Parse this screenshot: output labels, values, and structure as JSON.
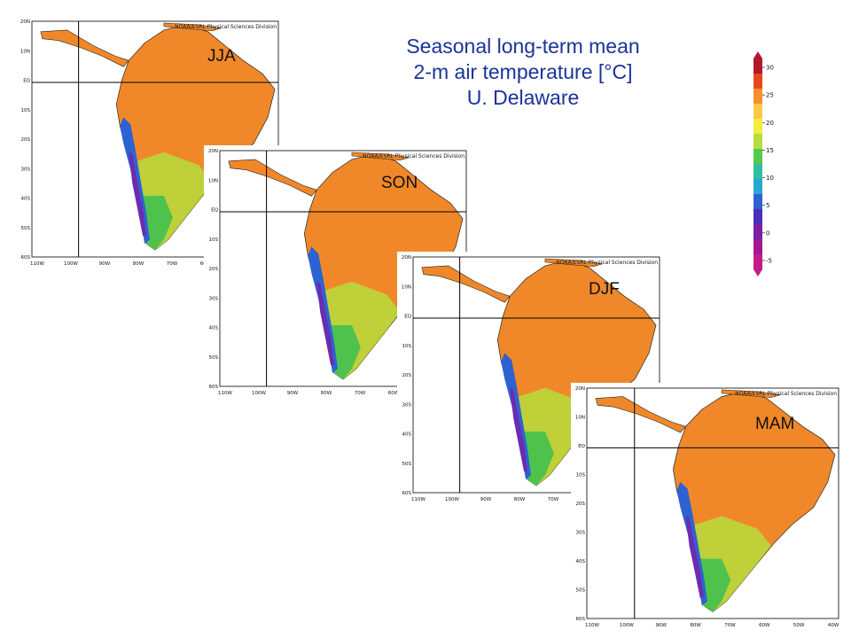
{
  "title": {
    "line1": "Seasonal long-term mean",
    "line2": "2-m air temperature [°C]",
    "line3": "U. Delaware"
  },
  "source_label": "NOAA/ESRL Physical Sciences Division",
  "lat_ticks": [
    "20N",
    "10N",
    "EQ",
    "10S",
    "20S",
    "30S",
    "40S",
    "50S",
    "60S"
  ],
  "lon_ticks": [
    "110W",
    "100W",
    "90W",
    "80W",
    "70W",
    "60W",
    "50W",
    "40W"
  ],
  "panels": [
    {
      "season": "JJA"
    },
    {
      "season": "SON"
    },
    {
      "season": "DJF"
    },
    {
      "season": "MAM"
    }
  ],
  "colorbar": {
    "ticks": [
      "30",
      "25",
      "20",
      "15",
      "10",
      "5",
      "0",
      "-5"
    ],
    "colors": [
      "#b2182b",
      "#e8471e",
      "#f58f2a",
      "#fdc843",
      "#f2ec3c",
      "#b7dd3a",
      "#56c84a",
      "#2fbf9e",
      "#2aa6d6",
      "#2d62d3",
      "#4b2fb5",
      "#7b1fa6",
      "#a3198f",
      "#c41c86"
    ]
  }
}
